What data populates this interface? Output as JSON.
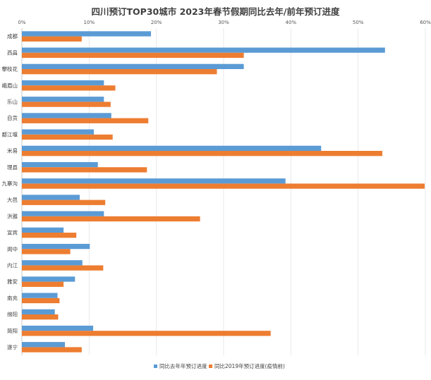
{
  "chart_data": {
    "type": "bar",
    "orientation": "horizontal",
    "title": "四川预订TOP30城市 2023年春节假期同比去年/前年预订进度",
    "categories": [
      "成都",
      "西昌",
      "攀枝花",
      "峨眉山",
      "乐山",
      "自贡",
      "都江堰",
      "米易",
      "理县",
      "九寨沟",
      "大邑",
      "洪雅",
      "宜宾",
      "阆中",
      "内江",
      "雅安",
      "南充",
      "绵阳",
      "简阳",
      "遂宁"
    ],
    "series": [
      {
        "name": "同比去年年预订进度",
        "color": "#5B9BD5",
        "values": [
          19.2,
          54.0,
          33.0,
          12.2,
          12.2,
          13.3,
          10.7,
          44.5,
          11.3,
          39.2,
          8.6,
          12.2,
          6.2,
          10.1,
          9.0,
          7.9,
          5.3,
          4.9,
          10.6,
          6.4
        ]
      },
      {
        "name": "同比2019年预订进度(疫情前)",
        "color": "#ED7D31",
        "values": [
          8.9,
          33.0,
          29.0,
          13.9,
          13.2,
          18.8,
          13.5,
          53.6,
          18.6,
          59.9,
          12.4,
          26.5,
          8.1,
          7.2,
          12.1,
          6.2,
          5.6,
          5.4,
          37.0,
          8.9
        ]
      }
    ],
    "xlim": [
      0,
      60
    ],
    "xticks": [
      "0%",
      "10%",
      "20%",
      "30%",
      "40%",
      "50%",
      "60%"
    ],
    "grid": true,
    "legend_position": "bottom"
  }
}
